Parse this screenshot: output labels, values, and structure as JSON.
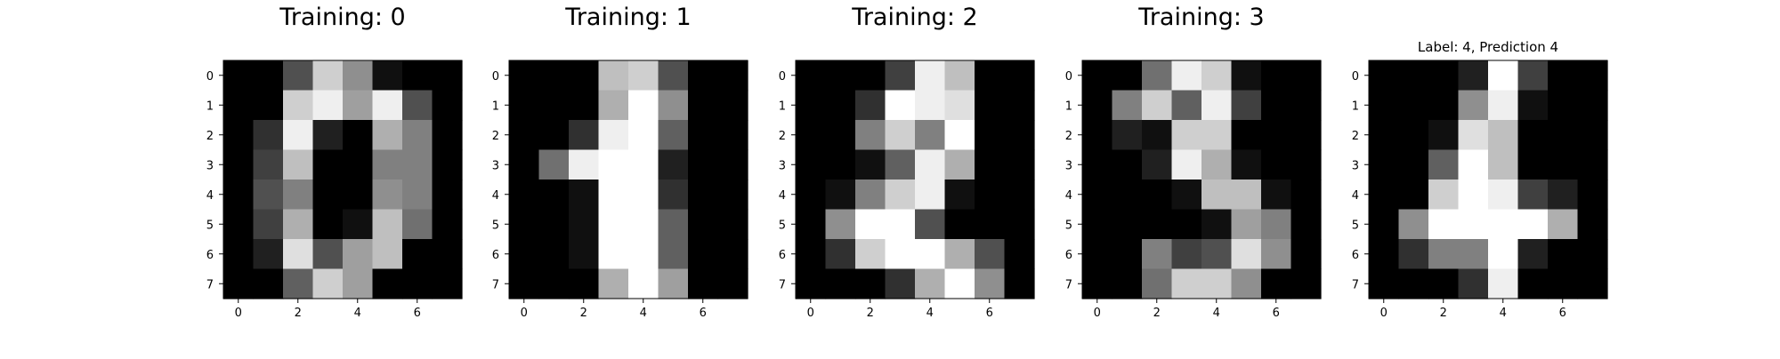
{
  "chart_data": [
    {
      "type": "heatmap",
      "title": "Training: 0",
      "colormap": "gray_r",
      "vmin": 0,
      "vmax": 16,
      "xlabel": "",
      "ylabel": "",
      "xticks": [
        0,
        2,
        4,
        6
      ],
      "yticks": [
        0,
        1,
        2,
        3,
        4,
        5,
        6,
        7
      ],
      "values": [
        [
          0,
          0,
          5,
          13,
          9,
          1,
          0,
          0
        ],
        [
          0,
          0,
          13,
          15,
          10,
          15,
          5,
          0
        ],
        [
          0,
          3,
          15,
          2,
          0,
          11,
          8,
          0
        ],
        [
          0,
          4,
          12,
          0,
          0,
          8,
          8,
          0
        ],
        [
          0,
          5,
          8,
          0,
          0,
          9,
          8,
          0
        ],
        [
          0,
          4,
          11,
          0,
          1,
          12,
          7,
          0
        ],
        [
          0,
          2,
          14,
          5,
          10,
          12,
          0,
          0
        ],
        [
          0,
          0,
          6,
          13,
          10,
          0,
          0,
          0
        ]
      ]
    },
    {
      "type": "heatmap",
      "title": "Training: 1",
      "colormap": "gray_r",
      "vmin": 0,
      "vmax": 16,
      "xlabel": "",
      "ylabel": "",
      "xticks": [
        0,
        2,
        4,
        6
      ],
      "yticks": [
        0,
        1,
        2,
        3,
        4,
        5,
        6,
        7
      ],
      "values": [
        [
          0,
          0,
          0,
          12,
          13,
          5,
          0,
          0
        ],
        [
          0,
          0,
          0,
          11,
          16,
          9,
          0,
          0
        ],
        [
          0,
          0,
          3,
          15,
          16,
          6,
          0,
          0
        ],
        [
          0,
          7,
          15,
          16,
          16,
          2,
          0,
          0
        ],
        [
          0,
          0,
          1,
          16,
          16,
          3,
          0,
          0
        ],
        [
          0,
          0,
          1,
          16,
          16,
          6,
          0,
          0
        ],
        [
          0,
          0,
          1,
          16,
          16,
          6,
          0,
          0
        ],
        [
          0,
          0,
          0,
          11,
          16,
          10,
          0,
          0
        ]
      ]
    },
    {
      "type": "heatmap",
      "title": "Training: 2",
      "colormap": "gray_r",
      "vmin": 0,
      "vmax": 16,
      "xlabel": "",
      "ylabel": "",
      "xticks": [
        0,
        2,
        4,
        6
      ],
      "yticks": [
        0,
        1,
        2,
        3,
        4,
        5,
        6,
        7
      ],
      "values": [
        [
          0,
          0,
          0,
          4,
          15,
          12,
          0,
          0
        ],
        [
          0,
          0,
          3,
          16,
          15,
          14,
          0,
          0
        ],
        [
          0,
          0,
          8,
          13,
          8,
          16,
          0,
          0
        ],
        [
          0,
          0,
          1,
          6,
          15,
          11,
          0,
          0
        ],
        [
          0,
          1,
          8,
          13,
          15,
          1,
          0,
          0
        ],
        [
          0,
          9,
          16,
          16,
          5,
          0,
          0,
          0
        ],
        [
          0,
          3,
          13,
          16,
          16,
          11,
          5,
          0
        ],
        [
          0,
          0,
          0,
          3,
          11,
          16,
          9,
          0
        ]
      ]
    },
    {
      "type": "heatmap",
      "title": "Training: 3",
      "colormap": "gray_r",
      "vmin": 0,
      "vmax": 16,
      "xlabel": "",
      "ylabel": "",
      "xticks": [
        0,
        2,
        4,
        6
      ],
      "yticks": [
        0,
        1,
        2,
        3,
        4,
        5,
        6,
        7
      ],
      "values": [
        [
          0,
          0,
          7,
          15,
          13,
          1,
          0,
          0
        ],
        [
          0,
          8,
          13,
          6,
          15,
          4,
          0,
          0
        ],
        [
          0,
          2,
          1,
          13,
          13,
          0,
          0,
          0
        ],
        [
          0,
          0,
          2,
          15,
          11,
          1,
          0,
          0
        ],
        [
          0,
          0,
          0,
          1,
          12,
          12,
          1,
          0
        ],
        [
          0,
          0,
          0,
          0,
          1,
          10,
          8,
          0
        ],
        [
          0,
          0,
          8,
          4,
          5,
          14,
          9,
          0
        ],
        [
          0,
          0,
          7,
          13,
          13,
          9,
          0,
          0
        ]
      ]
    },
    {
      "type": "heatmap",
      "title": "Label: 4, Prediction 4",
      "colormap": "gray_r",
      "vmin": 0,
      "vmax": 16,
      "xlabel": "",
      "ylabel": "",
      "xticks": [
        0,
        2,
        4,
        6
      ],
      "yticks": [
        0,
        1,
        2,
        3,
        4,
        5,
        6,
        7
      ],
      "values": [
        [
          0,
          0,
          0,
          2,
          16,
          4,
          0,
          0
        ],
        [
          0,
          0,
          0,
          9,
          15,
          1,
          0,
          0
        ],
        [
          0,
          0,
          1,
          14,
          12,
          0,
          0,
          0
        ],
        [
          0,
          0,
          6,
          16,
          12,
          0,
          0,
          0
        ],
        [
          0,
          0,
          13,
          16,
          15,
          4,
          2,
          0
        ],
        [
          0,
          9,
          16,
          16,
          16,
          16,
          11,
          0
        ],
        [
          0,
          3,
          8,
          8,
          16,
          2,
          0,
          0
        ],
        [
          0,
          0,
          0,
          3,
          15,
          0,
          0,
          0
        ]
      ]
    }
  ]
}
